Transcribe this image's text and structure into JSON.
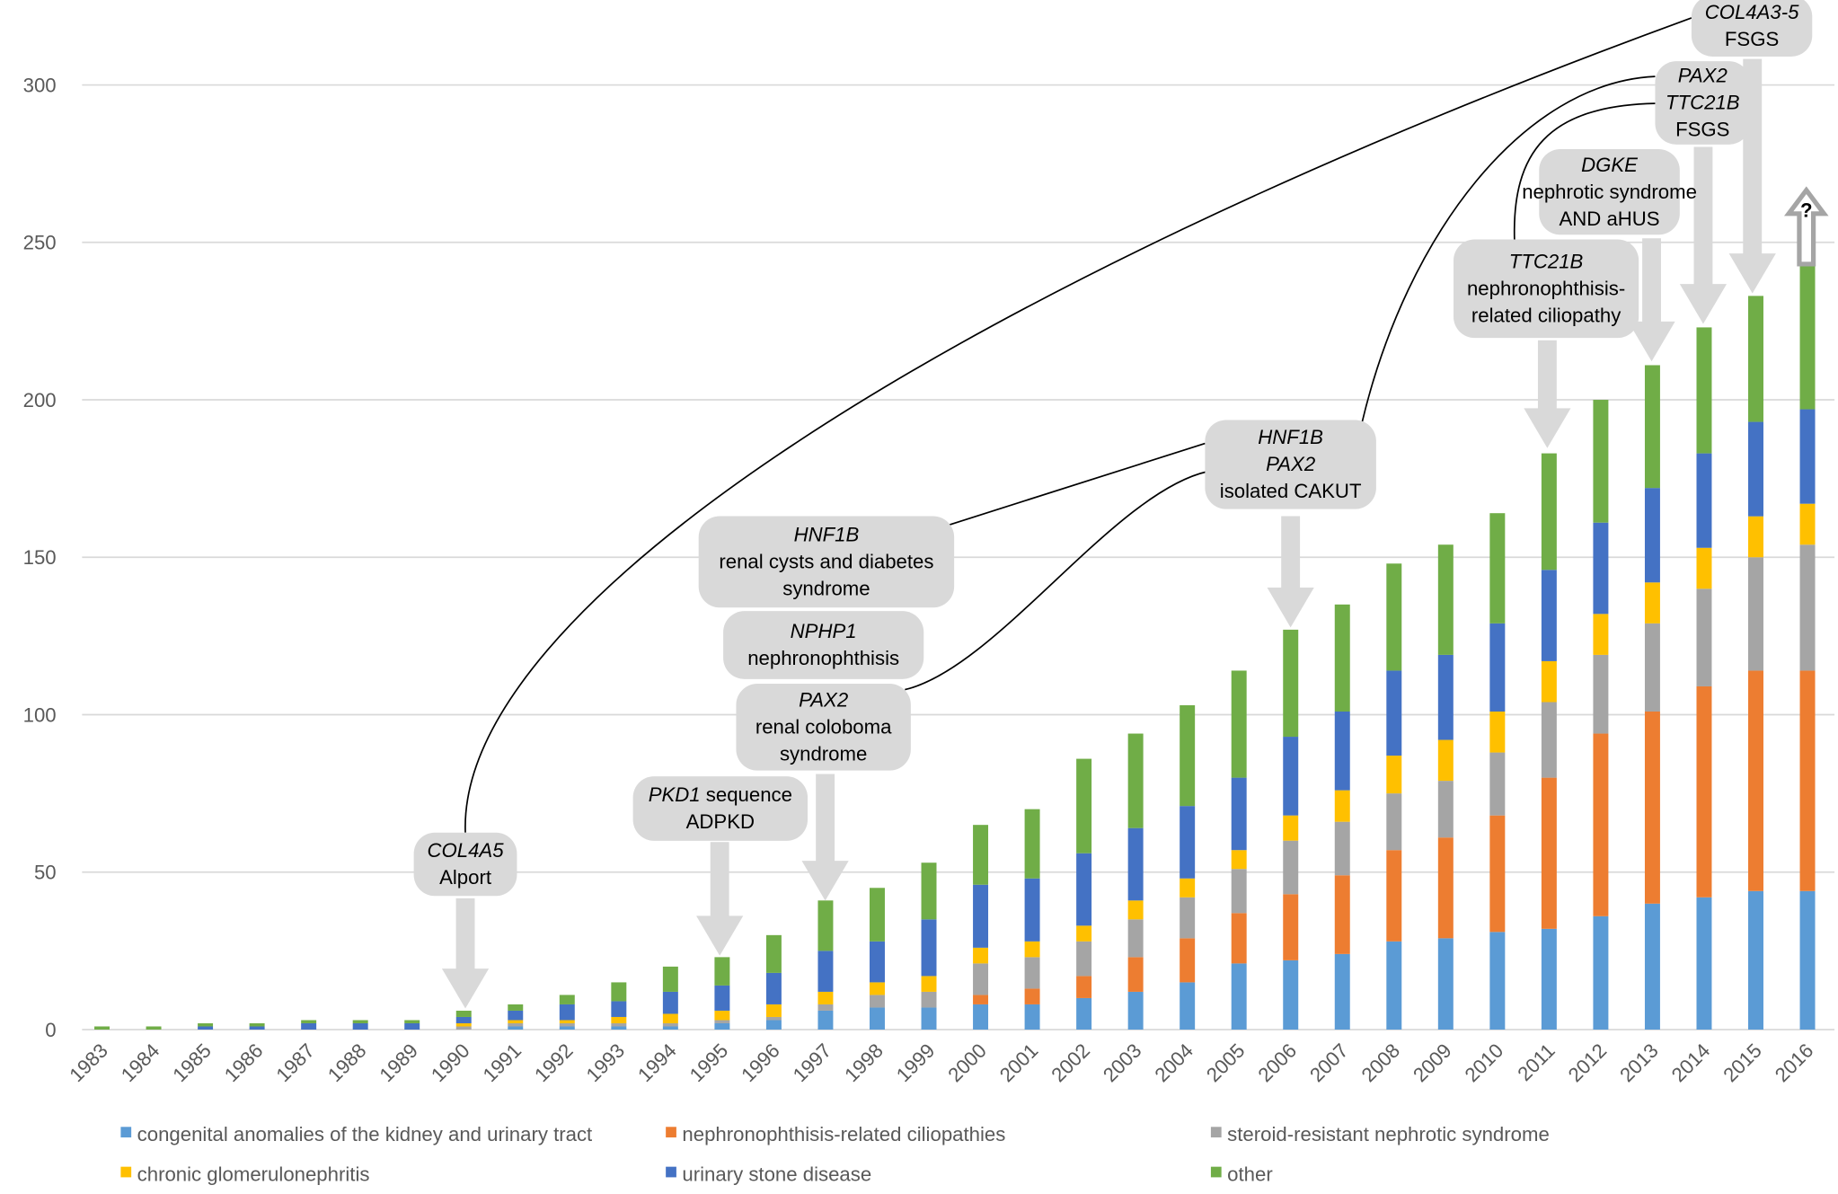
{
  "chart_data": {
    "type": "stacked-bar",
    "title": "",
    "xlabel": "",
    "ylabel": "",
    "ylim": [
      0,
      320
    ],
    "yticks": [
      0,
      50,
      100,
      150,
      200,
      250,
      300
    ],
    "grid": true,
    "legend_position": "bottom",
    "categories": [
      "1983",
      "1984",
      "1985",
      "1986",
      "1987",
      "1988",
      "1989",
      "1990",
      "1991",
      "1992",
      "1993",
      "1994",
      "1995",
      "1996",
      "1997",
      "1998",
      "1999",
      "2000",
      "2001",
      "2002",
      "2003",
      "2004",
      "2005",
      "2006",
      "2007",
      "2008",
      "2009",
      "2010",
      "2011",
      "2012",
      "2013",
      "2014",
      "2015",
      "2016"
    ],
    "series": [
      {
        "name": "congenital anomalies of the kidney and urinary tract",
        "color": "#5b9bd5",
        "values": [
          0,
          0,
          0,
          0,
          0,
          0,
          0,
          0,
          1,
          1,
          1,
          1,
          2,
          3,
          6,
          7,
          7,
          8,
          8,
          10,
          12,
          15,
          21,
          22,
          24,
          28,
          29,
          31,
          32,
          36,
          40,
          42,
          44,
          44
        ]
      },
      {
        "name": "nephronophthisis-related ciliopathies",
        "color": "#ed7d31",
        "values": [
          0,
          0,
          0,
          0,
          0,
          0,
          0,
          0,
          0,
          0,
          0,
          0,
          0,
          0,
          0,
          0,
          0,
          3,
          5,
          7,
          11,
          14,
          16,
          21,
          25,
          29,
          32,
          37,
          48,
          58,
          61,
          67,
          70,
          70
        ]
      },
      {
        "name": "steroid-resistant nephrotic syndrome",
        "color": "#a5a5a5",
        "values": [
          0,
          0,
          0,
          0,
          0,
          0,
          0,
          1,
          1,
          1,
          1,
          1,
          1,
          1,
          2,
          4,
          5,
          10,
          10,
          11,
          12,
          13,
          14,
          17,
          17,
          18,
          18,
          20,
          24,
          25,
          28,
          31,
          36,
          40
        ]
      },
      {
        "name": "chronic glomerulonephritis",
        "color": "#ffc000",
        "values": [
          0,
          0,
          0,
          0,
          0,
          0,
          0,
          1,
          1,
          1,
          2,
          3,
          3,
          4,
          4,
          4,
          5,
          5,
          5,
          5,
          6,
          6,
          6,
          8,
          10,
          12,
          13,
          13,
          13,
          13,
          13,
          13,
          13,
          13
        ]
      },
      {
        "name": "urinary stone disease",
        "color": "#4472c4",
        "values": [
          0,
          0,
          1,
          1,
          2,
          2,
          2,
          2,
          3,
          5,
          5,
          7,
          8,
          10,
          13,
          13,
          18,
          20,
          20,
          23,
          23,
          23,
          23,
          25,
          25,
          27,
          27,
          28,
          29,
          29,
          30,
          30,
          30,
          30
        ]
      },
      {
        "name": "other",
        "color": "#70ad47",
        "values": [
          1,
          1,
          1,
          1,
          1,
          1,
          1,
          2,
          2,
          3,
          6,
          8,
          9,
          12,
          16,
          17,
          18,
          19,
          22,
          30,
          30,
          32,
          34,
          34,
          34,
          34,
          35,
          35,
          37,
          39,
          39,
          40,
          40,
          46
        ]
      }
    ],
    "annotations": [
      {
        "year": "1990",
        "lines": [
          {
            "italic": "COL4A5",
            "normal": ""
          },
          {
            "italic": "",
            "normal": "Alport"
          }
        ]
      },
      {
        "year": "1995",
        "lines": [
          {
            "italic": "PKD1",
            "normal": " sequence"
          },
          {
            "italic": "",
            "normal": "ADPKD"
          }
        ]
      },
      {
        "year": "1997",
        "lines": [
          {
            "italic": "PAX2",
            "normal": ""
          },
          {
            "italic": "",
            "normal": "renal coloboma"
          },
          {
            "italic": "",
            "normal": "syndrome"
          }
        ]
      },
      {
        "year": "1997",
        "lines": [
          {
            "italic": "NPHP1",
            "normal": ""
          },
          {
            "italic": "",
            "normal": "nephronophthisis"
          }
        ]
      },
      {
        "year": "1997",
        "lines": [
          {
            "italic": "HNF1B",
            "normal": ""
          },
          {
            "italic": "",
            "normal": "renal cysts and diabetes"
          },
          {
            "italic": "",
            "normal": "syndrome"
          }
        ]
      },
      {
        "year": "2006",
        "lines": [
          {
            "italic": "HNF1B",
            "normal": ""
          },
          {
            "italic": "PAX2",
            "normal": ""
          },
          {
            "italic": "",
            "normal": "isolated CAKUT"
          }
        ]
      },
      {
        "year": "2011",
        "lines": [
          {
            "italic": "TTC21B",
            "normal": ""
          },
          {
            "italic": "",
            "normal": "nephronophthisis-"
          },
          {
            "italic": "",
            "normal": "related ciliopathy"
          }
        ]
      },
      {
        "year": "2013",
        "lines": [
          {
            "italic": "DGKE",
            "normal": ""
          },
          {
            "italic": "",
            "normal": "nephrotic syndrome"
          },
          {
            "italic": "",
            "normal": "AND aHUS"
          }
        ]
      },
      {
        "year": "2014",
        "lines": [
          {
            "italic": "PAX2",
            "normal": ""
          },
          {
            "italic": "TTC21B",
            "normal": ""
          },
          {
            "italic": "",
            "normal": "FSGS"
          }
        ]
      },
      {
        "year": "2015",
        "lines": [
          {
            "italic": "COL4A3-5",
            "normal": ""
          },
          {
            "italic": "",
            "normal": "FSGS"
          }
        ]
      },
      {
        "year": "2016",
        "lines": [
          {
            "italic": "",
            "normal": "?"
          }
        ]
      }
    ]
  }
}
